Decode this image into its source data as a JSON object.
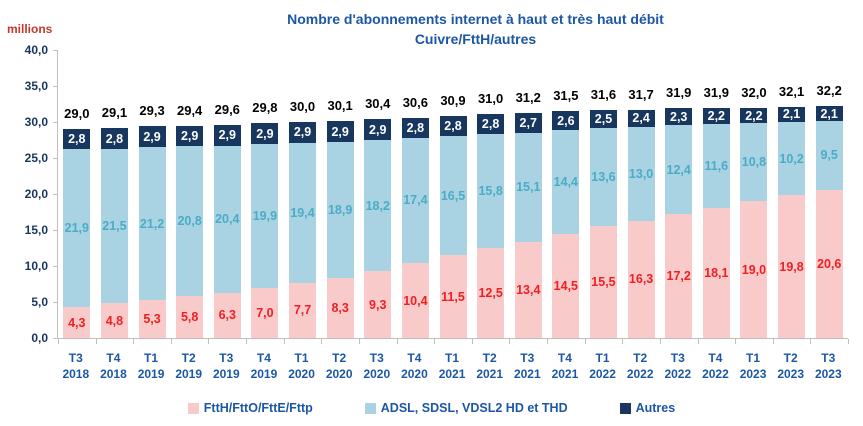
{
  "header": {
    "title_line1": "Nombre d'abonnements internet à haut et très haut débit",
    "title_line2": "Cuivre/FttH/autres"
  },
  "colors": {
    "accent_blue": "#1C57A5",
    "y_label_navy": "#17365D",
    "axis_gray": "#BFBFBF",
    "total_label": "#000000",
    "unit_red": "#C0392B"
  },
  "chart_data": {
    "type": "bar",
    "stacked": true,
    "title": "Nombre d'abonnements internet à haut et très haut débit Cuivre/FttH/autres",
    "unit_label": "millions",
    "ylim": [
      0,
      40
    ],
    "ytick_step": 5,
    "y_tick_labels": [
      "40,0",
      "35,0",
      "30,0",
      "25,0",
      "20,0",
      "15,0",
      "10,0",
      "5,0",
      "0,0"
    ],
    "grid": false,
    "legend_position": "bottom",
    "categories": [
      "T3 2018",
      "T4 2018",
      "T1 2019",
      "T2 2019",
      "T3 2019",
      "T4 2019",
      "T1 2020",
      "T2 2020",
      "T3 2020",
      "T4 2020",
      "T1 2021",
      "T2 2021",
      "T3 2021",
      "T4 2021",
      "T1 2022",
      "T2 2022",
      "T3 2022",
      "T4 2022",
      "T1 2023",
      "T2 2023",
      "T3 2023"
    ],
    "series": [
      {
        "name": "FttH/FttO/FttE/Fttp",
        "color": "#F8CBCA",
        "label_color": "#EE2024",
        "values": [
          4.3,
          4.8,
          5.3,
          5.8,
          6.3,
          7.0,
          7.7,
          8.3,
          9.3,
          10.4,
          11.5,
          12.5,
          13.4,
          14.5,
          15.5,
          16.3,
          17.2,
          18.1,
          19.0,
          19.8,
          20.6
        ]
      },
      {
        "name": "ADSL, SDSL, VDSL2 HD et THD",
        "color": "#A9D2E3",
        "label_color": "#4BACC6",
        "values": [
          21.9,
          21.5,
          21.2,
          20.8,
          20.4,
          19.9,
          19.4,
          18.9,
          18.2,
          17.4,
          16.5,
          15.8,
          15.1,
          14.4,
          13.6,
          13.0,
          12.4,
          11.6,
          10.8,
          10.2,
          9.5
        ]
      },
      {
        "name": "Autres",
        "color": "#17375E",
        "label_color": "#FFFFFF",
        "values": [
          2.8,
          2.8,
          2.9,
          2.9,
          2.9,
          2.9,
          2.9,
          2.9,
          2.9,
          2.8,
          2.8,
          2.8,
          2.7,
          2.6,
          2.5,
          2.4,
          2.3,
          2.2,
          2.2,
          2.1,
          2.1
        ]
      }
    ],
    "totals": [
      29.0,
      29.1,
      29.3,
      29.4,
      29.6,
      29.8,
      30.0,
      30.1,
      30.4,
      30.6,
      30.9,
      31.0,
      31.2,
      31.5,
      31.6,
      31.7,
      31.9,
      31.9,
      32.0,
      32.1,
      32.2
    ]
  }
}
